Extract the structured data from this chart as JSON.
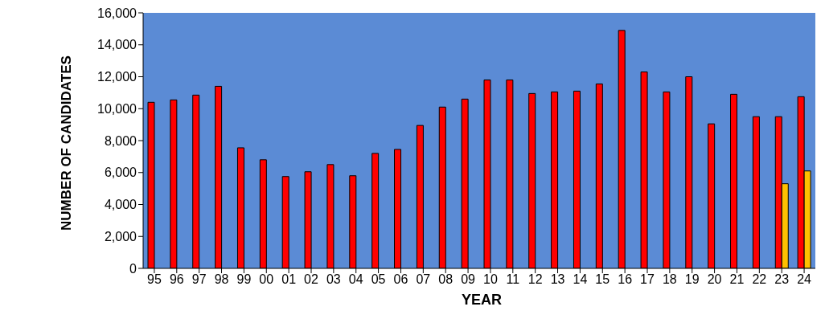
{
  "chart_data": {
    "type": "bar",
    "xlabel": "YEAR",
    "ylabel": "NUMBER OF CANDIDATES",
    "categories": [
      "95",
      "96",
      "97",
      "98",
      "99",
      "00",
      "01",
      "02",
      "03",
      "04",
      "05",
      "06",
      "07",
      "08",
      "09",
      "10",
      "11",
      "12",
      "13",
      "14",
      "15",
      "16",
      "17",
      "18",
      "19",
      "20",
      "21",
      "22",
      "23",
      "24"
    ],
    "series": [
      {
        "color": "#ff0000",
        "values": [
          10400,
          10550,
          10850,
          11400,
          7550,
          6800,
          5750,
          6050,
          6500,
          5800,
          7200,
          7450,
          8950,
          10100,
          10600,
          11800,
          11800,
          10950,
          11050,
          11100,
          11550,
          14900,
          12300,
          11050,
          12000,
          9050,
          10900,
          9500,
          9500,
          10750
        ]
      },
      {
        "color": "#ffc000",
        "values": [
          null,
          null,
          null,
          null,
          null,
          null,
          null,
          null,
          null,
          null,
          null,
          null,
          null,
          null,
          null,
          null,
          null,
          null,
          null,
          null,
          null,
          null,
          null,
          null,
          null,
          null,
          null,
          null,
          5300,
          6100
        ]
      }
    ],
    "ylim": [
      0,
      16000
    ],
    "yticks": [
      0,
      {
        "value": 2000,
        "label": "2,000"
      },
      {
        "value": 4000,
        "label": "4,000"
      },
      {
        "value": 6000,
        "label": "6,000"
      },
      {
        "value": 8000,
        "label": "8,000"
      },
      {
        "value": 10000,
        "label": "10,000"
      },
      {
        "value": 12000,
        "label": "12,000"
      },
      {
        "value": 14000,
        "label": "14,000"
      },
      {
        "value": 16000,
        "label": "16,000"
      }
    ],
    "grid": false,
    "legend": false
  }
}
